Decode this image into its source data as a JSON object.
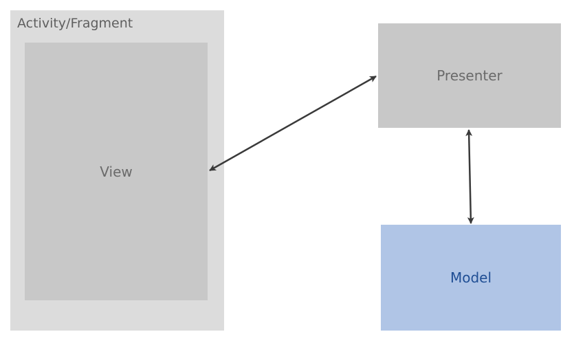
{
  "container": {
    "title": "Activity/Fragment",
    "fill": "#dcdcdc",
    "text_color": "#5f5f5f"
  },
  "view": {
    "label": "View",
    "fill": "#c8c8c8",
    "text_color": "#6a6a6a"
  },
  "presenter": {
    "label": "Presenter",
    "fill": "#c8c8c8",
    "text_color": "#6a6a6a"
  },
  "model": {
    "label": "Model",
    "fill": "#b0c5e6",
    "text_color": "#1f4e94"
  },
  "connectors": {
    "color": "#3a3a3a",
    "view_presenter": "bidirectional",
    "presenter_model": "bidirectional"
  }
}
